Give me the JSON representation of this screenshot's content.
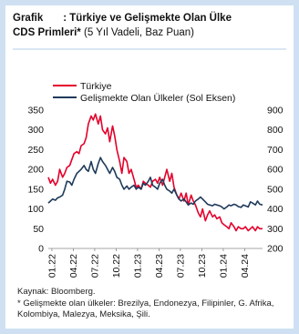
{
  "header": {
    "label": "Grafik",
    "title_bold_1": ": Türkiye ve Gelişmekte Olan Ülke",
    "title_bold_2": "CDS Primleri*",
    "title_light": "(5 Yıl Vadeli, Baz Puan)"
  },
  "notes": {
    "source": "Kaynak: Bloomberg.",
    "footnote": "* Gelişmekte olan ülkeler: Brezilya, Endonezya, Filipinler, G. Afrika, Kolombiya, Malezya, Meksika, Şili."
  },
  "chart_data": {
    "type": "line",
    "xlabel": "",
    "ylabel": "",
    "x_ticks": [
      "01.22",
      "04.22",
      "07.22",
      "10.22",
      "01.23",
      "04.23",
      "07.23",
      "10.23",
      "01.24",
      "04.24"
    ],
    "y_left": {
      "range": [
        0,
        350
      ],
      "ticks": [
        0,
        50,
        100,
        150,
        200,
        250,
        300,
        350
      ]
    },
    "y_right": {
      "range": [
        200,
        900
      ],
      "ticks": [
        200,
        300,
        400,
        500,
        600,
        700,
        800,
        900
      ]
    },
    "legend_position": "top-left",
    "series": [
      {
        "name": "Türkiye",
        "axis": "right",
        "color": "#e4002b",
        "x": [
          0,
          0.3,
          0.6,
          1,
          1.3,
          1.6,
          2,
          2.3,
          2.6,
          3,
          3.3,
          3.6,
          4,
          4.3,
          4.6,
          5,
          5.3,
          5.6,
          6,
          6.3,
          6.6,
          7,
          7.3,
          7.6,
          8,
          8.3,
          8.6,
          9,
          9.3,
          9.6,
          10,
          10.3,
          10.6,
          11,
          11.3,
          11.6,
          12,
          12.3,
          12.6,
          13,
          13.3,
          13.6,
          14,
          14.3,
          14.6,
          15,
          15.3,
          15.6,
          16,
          16.3,
          16.6,
          17,
          17.3,
          17.6,
          18,
          18.3,
          18.6,
          19,
          19.3,
          19.6,
          20,
          20.3,
          20.6,
          21,
          21.3,
          21.6,
          22,
          22.3,
          22.6,
          23,
          23.3,
          23.6,
          24,
          24.3,
          24.6,
          25,
          25.3,
          25.6,
          26,
          26.3,
          26.6,
          27,
          27.3,
          27.6,
          28,
          28.3,
          28.6,
          29,
          29.3,
          29.6,
          30
        ],
        "y": [
          560,
          530,
          550,
          520,
          540,
          600,
          560,
          580,
          610,
          620,
          650,
          680,
          690,
          680,
          720,
          730,
          760,
          830,
          870,
          850,
          880,
          830,
          870,
          800,
          780,
          810,
          740,
          820,
          770,
          700,
          640,
          580,
          660,
          640,
          580,
          600,
          550,
          510,
          520,
          500,
          540,
          530,
          520,
          510,
          540,
          550,
          530,
          560,
          520,
          560,
          600,
          540,
          580,
          510,
          470,
          450,
          480,
          440,
          480,
          420,
          470,
          440,
          420,
          380,
          360,
          400,
          340,
          370,
          390,
          360,
          370,
          350,
          360,
          330,
          320,
          310,
          300,
          330,
          310,
          290,
          310,
          300,
          300,
          310,
          290,
          300,
          310,
          290,
          310,
          300,
          300
        ]
      },
      {
        "name": "Gelişmekte Olan Ülkeler (Sol Eksen)",
        "axis": "left",
        "color": "#1f3a5a",
        "x": [
          0,
          0.3,
          0.6,
          1,
          1.3,
          1.6,
          2,
          2.3,
          2.6,
          3,
          3.3,
          3.6,
          4,
          4.3,
          4.6,
          5,
          5.3,
          5.6,
          6,
          6.3,
          6.6,
          7,
          7.3,
          7.6,
          8,
          8.3,
          8.6,
          9,
          9.3,
          9.6,
          10,
          10.3,
          10.6,
          11,
          11.3,
          11.6,
          12,
          12.3,
          12.6,
          13,
          13.3,
          13.6,
          14,
          14.3,
          14.6,
          15,
          15.3,
          15.6,
          16,
          16.3,
          16.6,
          17,
          17.3,
          17.6,
          18,
          18.3,
          18.6,
          19,
          19.3,
          19.6,
          20,
          20.3,
          20.6,
          21,
          21.3,
          21.6,
          22,
          22.3,
          22.6,
          23,
          23.3,
          23.6,
          24,
          24.3,
          24.6,
          25,
          25.3,
          25.6,
          26,
          26.3,
          26.6,
          27,
          27.3,
          27.6,
          28,
          28.3,
          28.6,
          29,
          29.3,
          29.6,
          30
        ],
        "y": [
          115,
          120,
          125,
          122,
          128,
          130,
          135,
          150,
          170,
          168,
          160,
          175,
          190,
          195,
          200,
          210,
          200,
          195,
          220,
          200,
          190,
          215,
          230,
          220,
          210,
          200,
          190,
          205,
          195,
          180,
          175,
          160,
          150,
          158,
          150,
          155,
          160,
          150,
          155,
          150,
          165,
          160,
          170,
          180,
          160,
          155,
          150,
          165,
          175,
          160,
          150,
          145,
          140,
          150,
          135,
          125,
          120,
          125,
          118,
          110,
          115,
          112,
          120,
          125,
          130,
          125,
          118,
          112,
          110,
          108,
          112,
          110,
          108,
          105,
          100,
          105,
          110,
          108,
          112,
          110,
          106,
          104,
          110,
          108,
          105,
          118,
          115,
          110,
          120,
          112,
          110
        ]
      }
    ]
  }
}
